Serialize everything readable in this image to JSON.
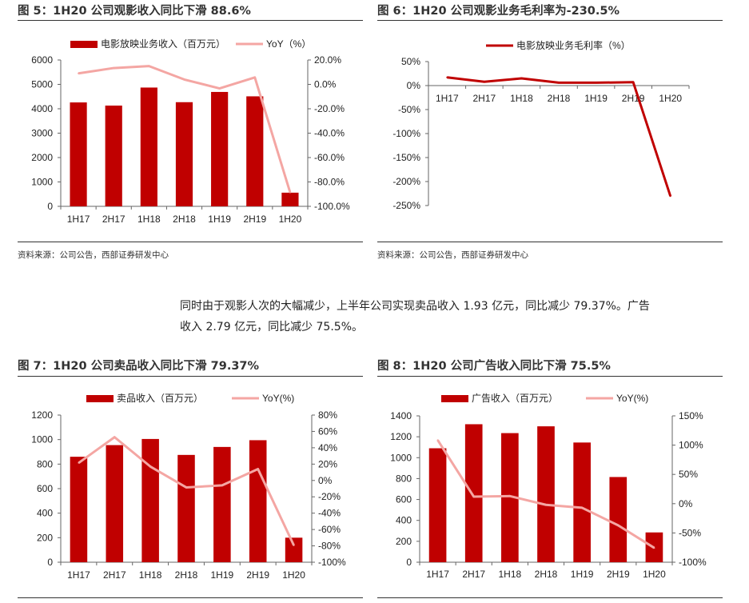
{
  "colors": {
    "bar": "#c00000",
    "line": "#f4a6a3",
    "line_dark": "#c00000"
  },
  "source": "资料来源：公司公告，西部证券研发中心",
  "paragraph": [
    "同时由于观影人次的大幅减少，上半年公司实现卖品收入 1.93 亿元，同比减少 79.37%。广告",
    "收入 2.79 亿元，同比减少 75.5%。"
  ],
  "chart_data": [
    {
      "type": "bar+line",
      "title": "图 5：1H20 公司观影收入同比下滑 88.6%",
      "categories": [
        "1H17",
        "2H17",
        "1H18",
        "2H18",
        "1H19",
        "2H19",
        "1H20"
      ],
      "series": [
        {
          "name": "电影放映业务收入（百万元）",
          "type": "bar",
          "axis": "left",
          "values": [
            4260,
            4130,
            4870,
            4270,
            4690,
            4510,
            560
          ]
        },
        {
          "name": "YoY（%）",
          "type": "line",
          "axis": "right",
          "values": [
            9,
            13.4,
            15,
            4,
            -3.3,
            5.7,
            -88.6
          ]
        }
      ],
      "ylim": [
        0,
        6000
      ],
      "yticks": [
        "0",
        "1000",
        "2000",
        "3000",
        "4000",
        "5000",
        "6000"
      ],
      "y2lim": [
        -100,
        20
      ],
      "y2ticks": [
        "-100.0%",
        "-80.0%",
        "-60.0%",
        "-40.0%",
        "-20.0%",
        "0.0%",
        "20.0%"
      ],
      "legend": "top",
      "grid": false
    },
    {
      "type": "line",
      "title": "图 6：1H20 公司观影业务毛利率为-230.5%",
      "categories": [
        "1H17",
        "2H17",
        "1H18",
        "2H18",
        "1H19",
        "2H19",
        "1H20"
      ],
      "series": [
        {
          "name": "电影放映业务毛利率（%）",
          "type": "line",
          "axis": "left",
          "values": [
            17,
            8,
            15,
            6,
            6,
            7,
            -230.5
          ]
        }
      ],
      "ylim": [
        -250,
        50
      ],
      "yticks": [
        "-250%",
        "-200%",
        "-150%",
        "-100%",
        "-50%",
        "0%",
        "50%"
      ],
      "legend": "top",
      "grid": false
    },
    {
      "type": "bar+line",
      "title": "图 7：1H20 公司卖品收入同比下滑 79.37%",
      "categories": [
        "1H17",
        "2H17",
        "1H18",
        "2H18",
        "1H19",
        "2H19",
        "1H20"
      ],
      "series": [
        {
          "name": "卖品收入（百万元）",
          "type": "bar",
          "axis": "left",
          "values": [
            860,
            955,
            1005,
            875,
            940,
            995,
            200
          ]
        },
        {
          "name": "YoY(%)",
          "type": "line",
          "axis": "right",
          "values": [
            21.5,
            53,
            17,
            -8.5,
            -6,
            14,
            -79.37
          ]
        }
      ],
      "ylim": [
        0,
        1200
      ],
      "yticks": [
        "0",
        "200",
        "400",
        "600",
        "800",
        "1000",
        "1200"
      ],
      "y2lim": [
        -100,
        80
      ],
      "y2ticks": [
        "-100%",
        "-80%",
        "-60%",
        "-40%",
        "-20%",
        "0%",
        "20%",
        "40%",
        "60%",
        "80%"
      ],
      "legend": "top",
      "grid": false
    },
    {
      "type": "bar+line",
      "title": "图 8：1H20 公司广告收入同比下滑 75.5%",
      "categories": [
        "1H17",
        "2H17",
        "1H18",
        "2H18",
        "1H19",
        "2H19",
        "1H20"
      ],
      "series": [
        {
          "name": "广告收入（百万元）",
          "type": "bar",
          "axis": "left",
          "values": [
            1090,
            1320,
            1235,
            1300,
            1145,
            815,
            285
          ]
        },
        {
          "name": "YoY(%)",
          "type": "line",
          "axis": "right",
          "values": [
            108.6,
            12,
            13,
            -2,
            -7,
            -37,
            -75.5
          ]
        }
      ],
      "ylim": [
        0,
        1400
      ],
      "yticks": [
        "0",
        "200",
        "400",
        "600",
        "800",
        "1000",
        "1200",
        "1400"
      ],
      "y2lim": [
        -100,
        150
      ],
      "y2ticks": [
        "-100%",
        "-50%",
        "0%",
        "50%",
        "100%",
        "150%"
      ],
      "legend": "top",
      "grid": false
    }
  ]
}
